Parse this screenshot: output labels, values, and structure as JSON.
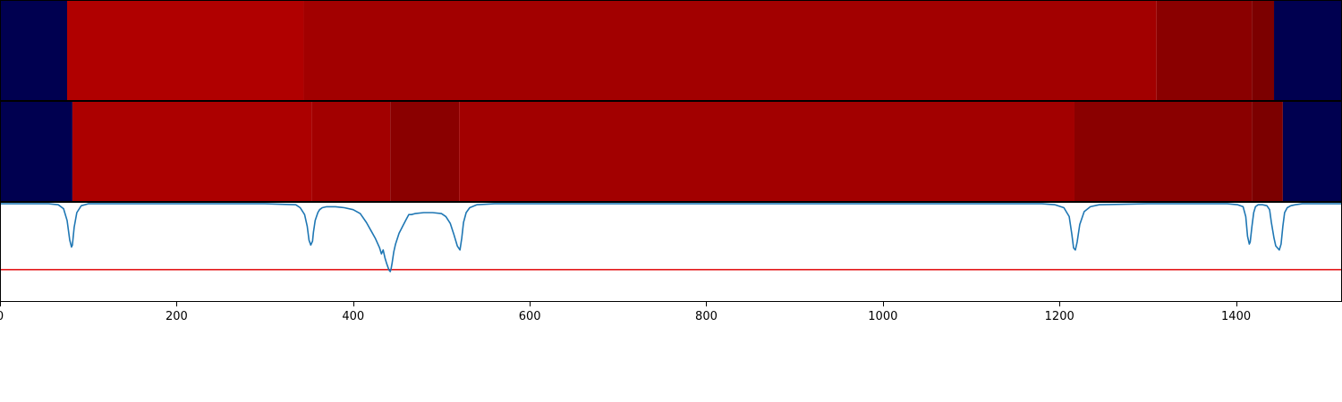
{
  "chart_data": [
    {
      "type": "heatmap",
      "name": "segment-band-top",
      "segments": [
        {
          "x0": 0,
          "x1": 76,
          "color": "#000050"
        },
        {
          "x0": 76,
          "x1": 344,
          "color": "#b00000"
        },
        {
          "x0": 344,
          "x1": 1310,
          "color": "#a20000"
        },
        {
          "x0": 1310,
          "x1": 1418,
          "color": "#8a0000"
        },
        {
          "x0": 1418,
          "x1": 1443,
          "color": "#7c0000"
        },
        {
          "x0": 1443,
          "x1": 1520,
          "color": "#000050"
        }
      ]
    },
    {
      "type": "heatmap",
      "name": "segment-band-bottom",
      "segments": [
        {
          "x0": 0,
          "x1": 82,
          "color": "#000050"
        },
        {
          "x0": 82,
          "x1": 353,
          "color": "#ac0000"
        },
        {
          "x0": 353,
          "x1": 442,
          "color": "#a20000"
        },
        {
          "x0": 442,
          "x1": 520,
          "color": "#8a0000"
        },
        {
          "x0": 520,
          "x1": 1217,
          "color": "#a20000"
        },
        {
          "x0": 1217,
          "x1": 1418,
          "color": "#8a0000"
        },
        {
          "x0": 1418,
          "x1": 1453,
          "color": "#7c0000"
        },
        {
          "x0": 1453,
          "x1": 1520,
          "color": "#000050"
        }
      ]
    },
    {
      "type": "line",
      "name": "boundary-signal",
      "xlim": [
        0,
        1520
      ],
      "ylim": [
        0,
        1
      ],
      "ticks": [
        0,
        200,
        400,
        600,
        800,
        1000,
        1200,
        1400
      ],
      "tick_labels": [
        "0",
        "200",
        "400",
        "600",
        "800",
        "1000",
        "1200",
        "1400"
      ],
      "threshold": 0.32,
      "threshold_color": "#e31a1c",
      "line_color": "#1f77b4",
      "x": [
        0,
        55,
        66,
        72,
        76,
        79,
        81,
        82,
        84,
        87,
        92,
        100,
        150,
        200,
        300,
        335,
        340,
        345,
        348,
        350,
        352,
        354,
        355,
        357,
        360,
        362,
        365,
        370,
        380,
        390,
        400,
        408,
        415,
        420,
        425,
        430,
        432,
        434,
        436,
        438,
        440,
        441,
        442,
        443,
        444,
        446,
        448,
        452,
        456,
        460,
        463,
        466,
        470,
        480,
        490,
        500,
        505,
        510,
        514,
        518,
        521,
        523,
        525,
        528,
        532,
        540,
        560,
        600,
        700,
        800,
        900,
        1000,
        1100,
        1150,
        1180,
        1195,
        1205,
        1211,
        1214,
        1216,
        1218,
        1220,
        1223,
        1228,
        1235,
        1245,
        1300,
        1350,
        1390,
        1402,
        1408,
        1411,
        1413,
        1415,
        1416,
        1418,
        1420,
        1422,
        1425,
        1430,
        1435,
        1438,
        1440,
        1443,
        1445,
        1449,
        1451,
        1453,
        1455,
        1458,
        1462,
        1467,
        1475,
        1490,
        1520
      ],
      "y": [
        0.99,
        0.99,
        0.98,
        0.94,
        0.82,
        0.62,
        0.55,
        0.57,
        0.75,
        0.9,
        0.97,
        0.99,
        0.99,
        0.99,
        0.99,
        0.98,
        0.95,
        0.88,
        0.76,
        0.62,
        0.57,
        0.61,
        0.7,
        0.82,
        0.9,
        0.93,
        0.95,
        0.96,
        0.96,
        0.95,
        0.93,
        0.89,
        0.8,
        0.72,
        0.64,
        0.54,
        0.48,
        0.52,
        0.44,
        0.38,
        0.33,
        0.31,
        0.3,
        0.33,
        0.38,
        0.5,
        0.58,
        0.69,
        0.76,
        0.83,
        0.88,
        0.88,
        0.89,
        0.9,
        0.9,
        0.89,
        0.86,
        0.79,
        0.68,
        0.56,
        0.52,
        0.64,
        0.8,
        0.9,
        0.95,
        0.98,
        0.99,
        0.99,
        0.99,
        0.99,
        0.99,
        0.99,
        0.99,
        0.99,
        0.99,
        0.98,
        0.95,
        0.86,
        0.68,
        0.54,
        0.52,
        0.6,
        0.78,
        0.91,
        0.96,
        0.98,
        0.99,
        0.99,
        0.99,
        0.98,
        0.96,
        0.86,
        0.66,
        0.58,
        0.6,
        0.76,
        0.9,
        0.96,
        0.98,
        0.98,
        0.97,
        0.93,
        0.8,
        0.64,
        0.56,
        0.52,
        0.58,
        0.76,
        0.9,
        0.95,
        0.97,
        0.98,
        0.99,
        0.99,
        0.99
      ]
    }
  ]
}
